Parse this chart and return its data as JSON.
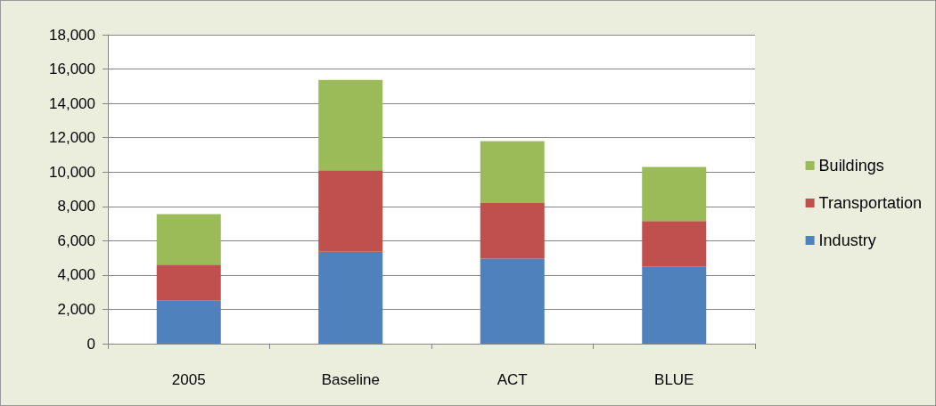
{
  "chart_data": {
    "type": "bar",
    "stacked": true,
    "categories": [
      "2005",
      "Baseline",
      "ACT",
      "BLUE"
    ],
    "series": [
      {
        "name": "Industry",
        "color": "#4f81bd",
        "values": [
          2500,
          5350,
          4950,
          4500
        ]
      },
      {
        "name": "Transportation",
        "color": "#c0504d",
        "values": [
          2100,
          4750,
          3250,
          2650
        ]
      },
      {
        "name": "Buildings",
        "color": "#9bbb59",
        "values": [
          2950,
          5270,
          3600,
          3150
        ]
      }
    ],
    "ylim": [
      0,
      18000
    ],
    "yticks": [
      {
        "value": 0,
        "label": "0"
      },
      {
        "value": 2000,
        "label": "2,000"
      },
      {
        "value": 4000,
        "label": "4,000"
      },
      {
        "value": 6000,
        "label": "6,000"
      },
      {
        "value": 8000,
        "label": "8,000"
      },
      {
        "value": 10000,
        "label": "10,000"
      },
      {
        "value": 12000,
        "label": "12,000"
      },
      {
        "value": 14000,
        "label": "14,000"
      },
      {
        "value": 16000,
        "label": "16,000"
      },
      {
        "value": 18000,
        "label": "18,000"
      }
    ],
    "grid": "y",
    "legend": "right"
  }
}
